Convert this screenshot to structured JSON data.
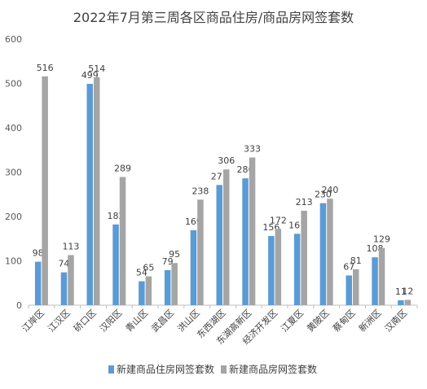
{
  "chart_data": {
    "type": "bar",
    "title": "2022年7月第三周各区商品住房/商品房网签套数",
    "categories": [
      "江岸区",
      "江汉区",
      "硚口区",
      "汉阳区",
      "青山区",
      "武昌区",
      "洪山区",
      "东西湖区",
      "东湖高新区",
      "经济开发区",
      "江夏区",
      "黄陂区",
      "蔡甸区",
      "新洲区",
      "汉南区"
    ],
    "series": [
      {
        "name": "新建商品住房网签套数",
        "color": "#5b9bd5",
        "values": [
          98,
          74,
          499,
          182,
          54,
          79,
          169,
          271,
          286,
          156,
          161,
          230,
          67,
          108,
          11
        ]
      },
      {
        "name": "新建商品房网签套数",
        "color": "#a5a5a5",
        "values": [
          516,
          113,
          514,
          289,
          65,
          95,
          238,
          306,
          333,
          172,
          213,
          240,
          81,
          129,
          12
        ]
      }
    ],
    "ylim": [
      0,
      600
    ],
    "yticks": [
      0,
      100,
      200,
      300,
      400,
      500,
      600
    ],
    "grid": false,
    "legend_position": "bottom"
  }
}
